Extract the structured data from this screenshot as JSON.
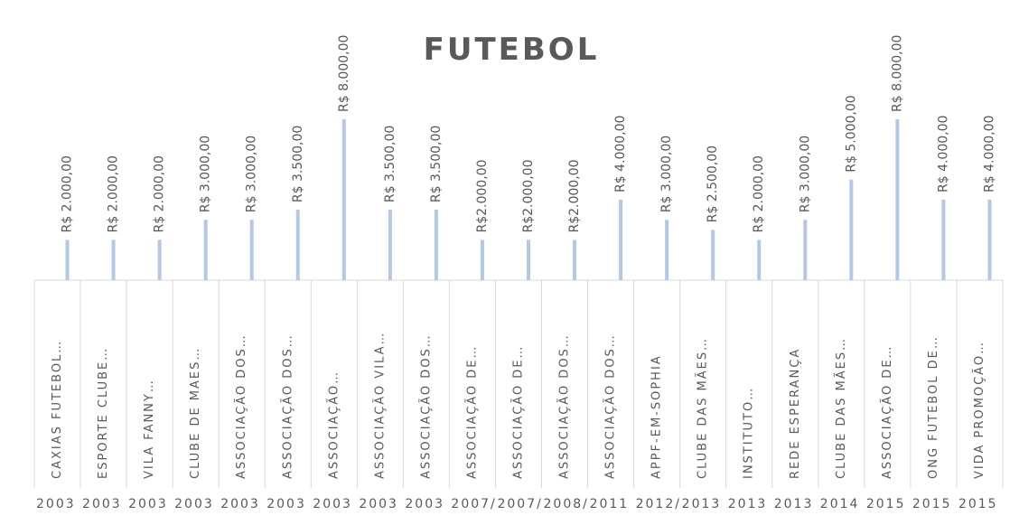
{
  "chart_data": {
    "type": "bar",
    "title": "FUTEBOL",
    "categories": [
      "CAXIAS FUTEBOL…",
      "ESPORTE CLUBE…",
      "VILA FANNY…",
      "CLUBE DE MAES…",
      "ASSOCIAÇÃO DOS…",
      "ASSOCIAÇÃO DOS…",
      "ASSOCIAÇÃO…",
      "ASSOCIAÇÃO VILA…",
      "ASSOCIAÇÃO DOS…",
      "ASSOCIAÇÃO DE…",
      "ASSOCIAÇÃO DE…",
      "ASSOCIAÇÃO DOS…",
      "ASSOCIAÇÃO DOS…",
      "APPF-EM-SOPHIA",
      "CLUBE DAS MÃES…",
      "INSTITUTO…",
      "REDE ESPERANÇA",
      "CLUBE DAS MÃES…",
      "ASSOCIAÇÃO DE…",
      "ONG FUTEBOL DE…",
      "VIDA PROMOÇÃO…"
    ],
    "years": [
      "2003",
      "2003",
      "2003",
      "2003",
      "2003",
      "2003",
      "2003",
      "2003",
      "2003",
      "2007/",
      "2007/",
      "2008/",
      "2011",
      "2012/",
      "2013",
      "2013",
      "2013",
      "2014",
      "2015",
      "2015",
      "2015"
    ],
    "values": [
      2000,
      2000,
      2000,
      3000,
      3000,
      3500,
      8000,
      3500,
      3500,
      2000,
      2000,
      2000,
      4000,
      3000,
      2500,
      2000,
      3000,
      5000,
      8000,
      4000,
      4000
    ],
    "value_labels": [
      "R$ 2.000,00",
      "R$ 2.000,00",
      "R$ 2.000,00",
      "R$ 3.000,00",
      "R$ 3.000,00",
      "R$ 3.500,00",
      "R$ 8.000,00",
      "R$ 3.500,00",
      "R$ 3.500,00",
      "R$2.000,00",
      "R$2.000,00",
      "R$2.000,00",
      "R$ 4.000,00",
      "R$ 3.000,00",
      "R$ 2.500,00",
      "R$ 2.000,00",
      "R$ 3.000,00",
      "R$ 5.000,00",
      "R$ 8.000,00",
      "R$ 4.000,00",
      "R$ 4.000,00"
    ],
    "color": "#b4c7e7"
  }
}
